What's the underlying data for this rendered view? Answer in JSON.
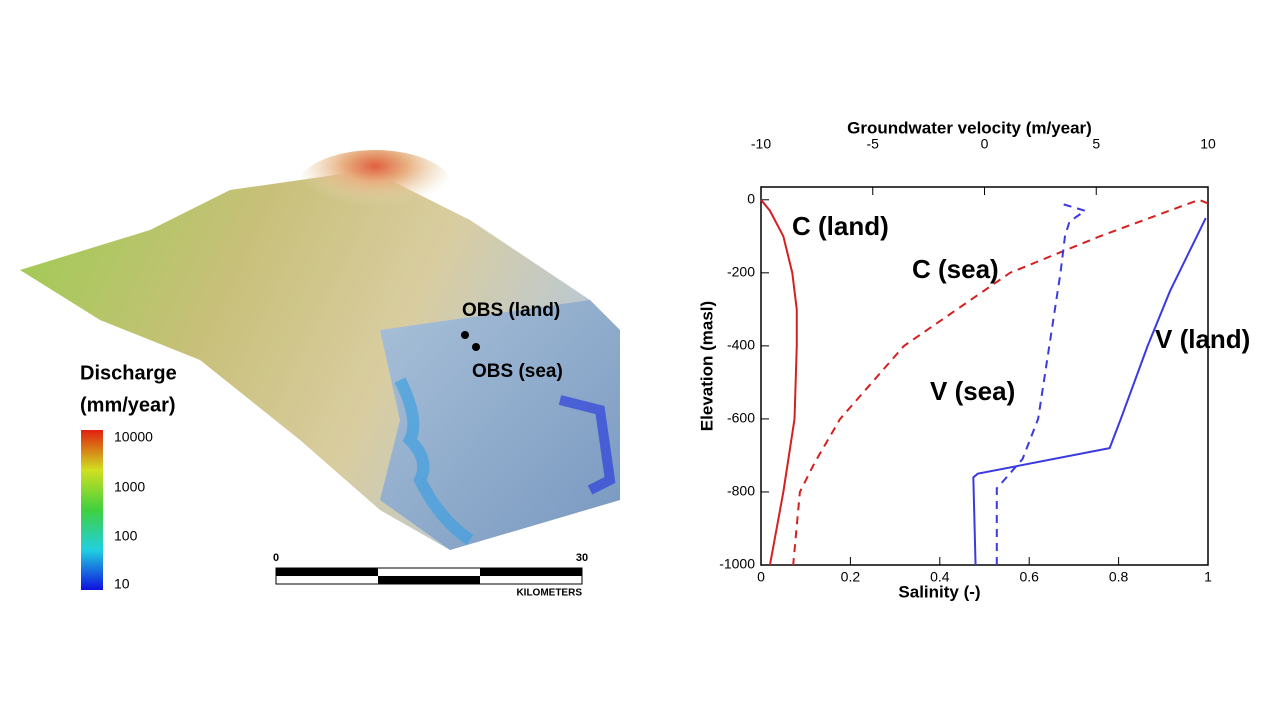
{
  "map": {
    "legend_title": [
      "Discharge",
      "(mm/year)"
    ],
    "legend_labels": [
      "10000",
      "1000",
      "100",
      "10"
    ],
    "scale_labels": [
      "0",
      "30"
    ],
    "scale_unit": "KILOMETERS",
    "points": [
      "OBS (land)",
      "OBS (sea)"
    ]
  },
  "chart_data": {
    "type": "line",
    "x_label": "Salinity (-)",
    "x2_label": "Groundwater velocity (m/year)",
    "y_label": "Elevation (masl)",
    "xlim": [
      0,
      1
    ],
    "xticks": [
      0,
      0.2,
      0.4,
      0.6,
      0.8,
      1
    ],
    "x2lim": [
      -10,
      10
    ],
    "x2ticks": [
      -10,
      -5,
      0,
      5,
      10
    ],
    "ylim": [
      -1000,
      35
    ],
    "yticks": [
      0,
      -200,
      -400,
      -600,
      -800,
      -1000
    ],
    "series": [
      {
        "name": "C (land)",
        "color": "#d42020",
        "dash": false,
        "axis": "x",
        "x": [
          0,
          0.02,
          0.05,
          0.07,
          0.08,
          0.08,
          0.075,
          0.05,
          0.02
        ],
        "values": [
          0,
          -30,
          -100,
          -200,
          -300,
          -400,
          -600,
          -800,
          -1000
        ]
      },
      {
        "name": "C (sea)",
        "color": "#d42020",
        "dash": true,
        "axis": "x",
        "x": [
          1.0,
          0.98,
          0.758,
          0.557,
          0.32,
          0.177,
          0.12,
          0.087,
          0.072
        ],
        "values": [
          -10,
          0,
          -100,
          -200,
          -400,
          -600,
          -720,
          -800,
          -1000
        ]
      },
      {
        "name": "V (land)",
        "color": "#3a3ae0",
        "dash": false,
        "axis": "x2",
        "x": [
          -0.4,
          -0.5,
          -0.3,
          5.6,
          6.1,
          7.3,
          8.3,
          9.9
        ],
        "values": [
          -1000,
          -760,
          -750,
          -680,
          -600,
          -400,
          -250,
          -50
        ]
      },
      {
        "name": "V (sea)",
        "color": "#3a3ae0",
        "dash": true,
        "axis": "x2",
        "x": [
          0.55,
          0.55,
          0.7,
          1.7,
          2.4,
          2.9,
          3.4,
          3.6,
          3.8,
          4.5,
          3.4
        ],
        "values": [
          -1000,
          -790,
          -780,
          -710,
          -600,
          -400,
          -200,
          -100,
          -60,
          -30,
          -10
        ]
      }
    ]
  }
}
